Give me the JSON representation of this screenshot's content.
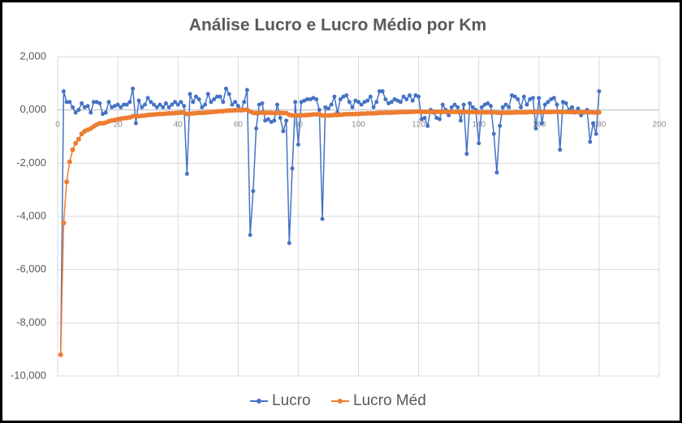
{
  "chart_data": {
    "type": "scatter",
    "title": "Análise Lucro e Lucro Médio por Km",
    "x": [
      1,
      2,
      3,
      4,
      5,
      6,
      7,
      8,
      9,
      10,
      11,
      12,
      13,
      14,
      15,
      16,
      17,
      18,
      19,
      20,
      21,
      22,
      23,
      24,
      25,
      26,
      27,
      28,
      29,
      30,
      31,
      32,
      33,
      34,
      35,
      36,
      37,
      38,
      39,
      40,
      41,
      42,
      43,
      44,
      45,
      46,
      47,
      48,
      49,
      50,
      51,
      52,
      53,
      54,
      55,
      56,
      57,
      58,
      59,
      60,
      61,
      62,
      63,
      64,
      65,
      66,
      67,
      68,
      69,
      70,
      71,
      72,
      73,
      74,
      75,
      76,
      77,
      78,
      79,
      80,
      81,
      82,
      83,
      84,
      85,
      86,
      87,
      88,
      89,
      90,
      91,
      92,
      93,
      94,
      95,
      96,
      97,
      98,
      99,
      100,
      101,
      102,
      103,
      104,
      105,
      106,
      107,
      108,
      109,
      110,
      111,
      112,
      113,
      114,
      115,
      116,
      117,
      118,
      119,
      120,
      121,
      122,
      123,
      124,
      125,
      126,
      127,
      128,
      129,
      130,
      131,
      132,
      133,
      134,
      135,
      136,
      137,
      138,
      139,
      140,
      141,
      142,
      143,
      144,
      145,
      146,
      147,
      148,
      149,
      150,
      151,
      152,
      153,
      154,
      155,
      156,
      157,
      158,
      159,
      160,
      161,
      162,
      163,
      164,
      165,
      166,
      167,
      168,
      169,
      170,
      171,
      172,
      173,
      174,
      175,
      176,
      177,
      178,
      179,
      180
    ],
    "series": [
      {
        "name": "Lucro",
        "color": "#4472c4",
        "values": [
          -9.2,
          0.7,
          0.3,
          0.3,
          0.1,
          -0.1,
          0.0,
          0.25,
          0.1,
          0.15,
          -0.1,
          0.3,
          0.3,
          0.25,
          -0.15,
          -0.1,
          0.3,
          0.1,
          0.15,
          0.2,
          0.1,
          0.2,
          0.2,
          0.3,
          0.8,
          -0.5,
          0.35,
          0.1,
          0.2,
          0.45,
          0.3,
          0.2,
          0.1,
          0.2,
          0.1,
          0.25,
          0.1,
          0.2,
          0.3,
          0.2,
          0.3,
          0.15,
          -2.4,
          0.6,
          0.3,
          0.5,
          0.4,
          0.1,
          0.2,
          0.6,
          0.3,
          0.4,
          0.5,
          0.5,
          0.3,
          0.8,
          0.6,
          0.2,
          0.3,
          0.15,
          0.0,
          0.3,
          0.75,
          -4.7,
          -3.05,
          -0.7,
          0.2,
          0.25,
          -0.4,
          -0.35,
          -0.45,
          -0.4,
          0.2,
          -0.3,
          -0.8,
          -0.4,
          -5.0,
          -2.2,
          0.3,
          -1.3,
          0.3,
          0.35,
          0.4,
          0.4,
          0.45,
          0.4,
          0.0,
          -4.1,
          0.1,
          0.05,
          0.2,
          0.5,
          -0.1,
          0.4,
          0.5,
          0.55,
          0.3,
          0.1,
          0.35,
          0.3,
          0.2,
          0.3,
          0.35,
          0.5,
          0.1,
          0.3,
          0.7,
          0.7,
          0.4,
          0.25,
          0.3,
          0.4,
          0.35,
          0.3,
          0.5,
          0.4,
          0.55,
          0.35,
          0.55,
          0.5,
          -0.35,
          -0.3,
          -0.6,
          0.0,
          -0.1,
          -0.3,
          -0.35,
          0.2,
          0.0,
          -0.2,
          0.1,
          0.2,
          0.1,
          -0.4,
          0.2,
          -1.65,
          0.25,
          0.1,
          0.0,
          -1.25,
          0.1,
          0.2,
          0.25,
          0.15,
          -0.9,
          -2.35,
          -0.6,
          0.1,
          0.2,
          0.1,
          0.55,
          0.5,
          0.4,
          0.1,
          0.5,
          0.2,
          0.4,
          0.45,
          -0.7,
          0.45,
          -0.5,
          0.2,
          0.3,
          0.4,
          0.45,
          0.2,
          -1.5,
          0.3,
          0.25,
          0.0,
          0.1,
          -0.1,
          0.05,
          -0.2,
          -0.1,
          0.0,
          -1.2,
          -0.5,
          -0.9,
          0.7
        ]
      },
      {
        "name": "Lucro Méd",
        "color": "#ed7d31",
        "values": [
          -9.2,
          -4.25,
          -2.7,
          -1.95,
          -1.5,
          -1.25,
          -1.1,
          -0.9,
          -0.8,
          -0.75,
          -0.7,
          -0.62,
          -0.55,
          -0.5,
          -0.5,
          -0.48,
          -0.43,
          -0.4,
          -0.38,
          -0.35,
          -0.33,
          -0.31,
          -0.3,
          -0.28,
          -0.24,
          -0.25,
          -0.23,
          -0.22,
          -0.21,
          -0.19,
          -0.18,
          -0.17,
          -0.16,
          -0.15,
          -0.15,
          -0.14,
          -0.13,
          -0.13,
          -0.12,
          -0.11,
          -0.1,
          -0.1,
          -0.15,
          -0.14,
          -0.13,
          -0.12,
          -0.11,
          -0.11,
          -0.1,
          -0.09,
          -0.08,
          -0.07,
          -0.06,
          -0.05,
          -0.05,
          -0.03,
          -0.02,
          -0.02,
          -0.01,
          -0.01,
          -0.01,
          0.0,
          0.01,
          -0.06,
          -0.11,
          -0.12,
          -0.11,
          -0.1,
          -0.11,
          -0.11,
          -0.11,
          -0.12,
          -0.11,
          -0.11,
          -0.12,
          -0.12,
          -0.18,
          -0.21,
          -0.2,
          -0.21,
          -0.2,
          -0.2,
          -0.19,
          -0.18,
          -0.17,
          -0.17,
          -0.16,
          -0.21,
          -0.21,
          -0.21,
          -0.2,
          -0.19,
          -0.19,
          -0.18,
          -0.17,
          -0.16,
          -0.16,
          -0.16,
          -0.15,
          -0.15,
          -0.14,
          -0.14,
          -0.13,
          -0.13,
          -0.13,
          -0.12,
          -0.11,
          -0.11,
          -0.1,
          -0.1,
          -0.1,
          -0.09,
          -0.09,
          -0.08,
          -0.08,
          -0.08,
          -0.07,
          -0.07,
          -0.06,
          -0.06,
          -0.07,
          -0.07,
          -0.07,
          -0.07,
          -0.07,
          -0.07,
          -0.07,
          -0.07,
          -0.07,
          -0.07,
          -0.07,
          -0.07,
          -0.07,
          -0.07,
          -0.07,
          -0.08,
          -0.08,
          -0.08,
          -0.08,
          -0.09,
          -0.09,
          -0.09,
          -0.09,
          -0.09,
          -0.09,
          -0.1,
          -0.11,
          -0.1,
          -0.1,
          -0.1,
          -0.1,
          -0.09,
          -0.09,
          -0.09,
          -0.09,
          -0.09,
          -0.08,
          -0.08,
          -0.08,
          -0.08,
          -0.08,
          -0.08,
          -0.08,
          -0.08,
          -0.07,
          -0.07,
          -0.08,
          -0.08,
          -0.08,
          -0.08,
          -0.08,
          -0.08,
          -0.08,
          -0.08,
          -0.08,
          -0.08,
          -0.09,
          -0.09,
          -0.1,
          -0.09
        ]
      }
    ],
    "xlim": [
      0,
      200
    ],
    "xticks": [
      0,
      20,
      40,
      60,
      80,
      100,
      120,
      140,
      160,
      180,
      200
    ],
    "ylim": [
      -10,
      2
    ],
    "yticks": [
      {
        "value": -10,
        "label": "-10,000"
      },
      {
        "value": -8,
        "label": "-8,000"
      },
      {
        "value": -6,
        "label": "-6,000"
      },
      {
        "value": -4,
        "label": "-4,000"
      },
      {
        "value": -2,
        "label": "-2,000"
      },
      {
        "value": 0,
        "label": "0,000"
      },
      {
        "value": 2,
        "label": "2,000"
      }
    ],
    "grid": true,
    "legend": "bottom"
  }
}
